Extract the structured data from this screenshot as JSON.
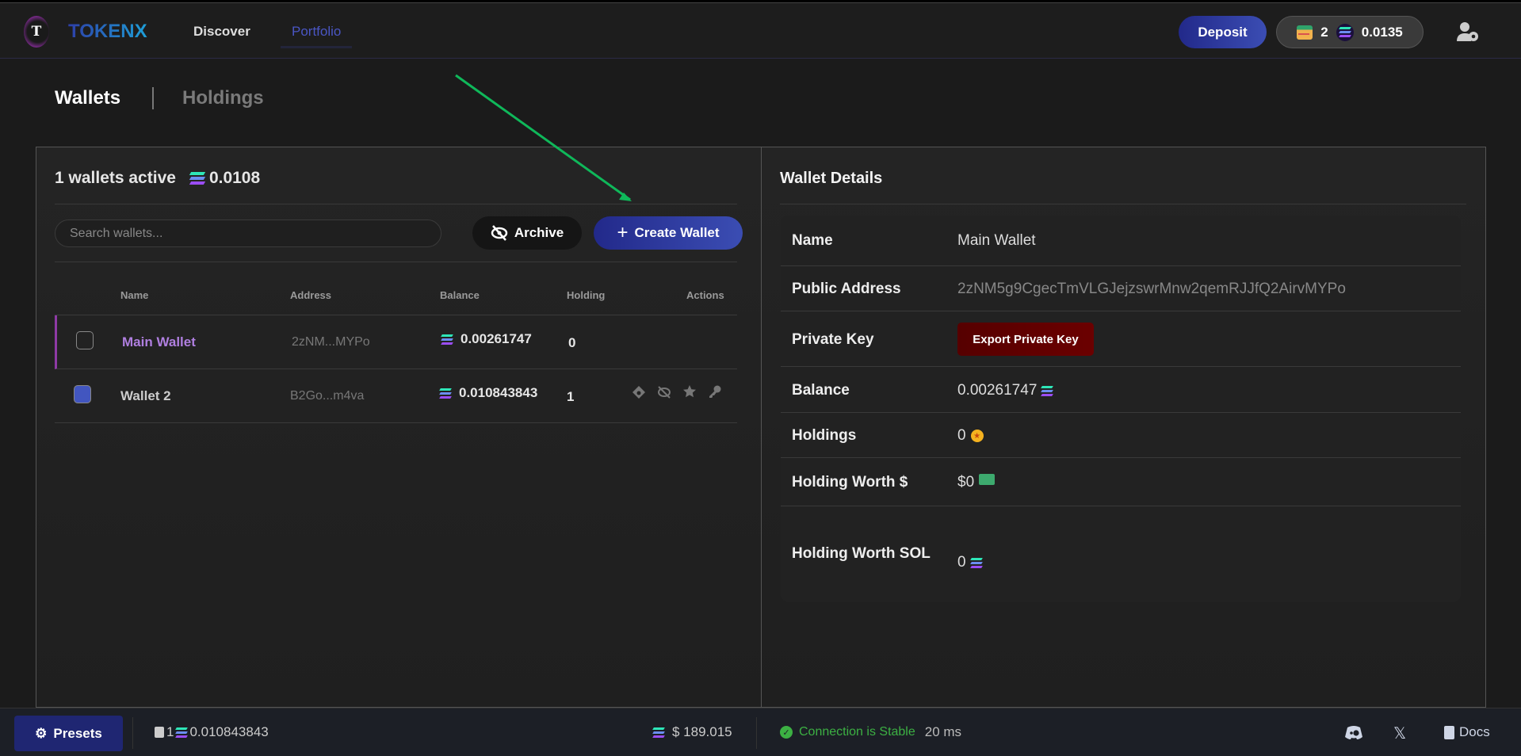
{
  "header": {
    "logo_letter": "T",
    "brand": "TOKENX",
    "nav": [
      {
        "label": "Discover"
      },
      {
        "label": "Portfolio",
        "active": true
      }
    ],
    "deposit_label": "Deposit",
    "wallet_count": "2",
    "sol_balance": "0.0135"
  },
  "tabs": [
    {
      "label": "Wallets",
      "active": true
    },
    {
      "label": "Holdings"
    }
  ],
  "wallets_panel": {
    "active_text": "1 wallets active",
    "total_sol": "0.0108",
    "search_placeholder": "Search wallets...",
    "archive_label": "Archive",
    "create_label": "Create Wallet",
    "columns": [
      "Name",
      "Address",
      "Balance",
      "Holding",
      "Actions"
    ],
    "rows": [
      {
        "name": "Main Wallet",
        "address": "2zNM...MYPo",
        "balance": "0.00261747",
        "holding": "0",
        "selected": true,
        "checked": false
      },
      {
        "name": "Wallet 2",
        "address": "B2Go...m4va",
        "balance": "0.010843843",
        "holding": "1",
        "selected": false,
        "checked": true
      }
    ]
  },
  "details": {
    "title": "Wallet Details",
    "rows": [
      {
        "label": "Name",
        "value": "Main Wallet"
      },
      {
        "label": "Public Address",
        "value": "2zNM5g9CgecTmVLGJejzswrMnw2qemRJJfQ2AirvMYPo"
      },
      {
        "label": "Private Key",
        "button": "Export Private Key"
      },
      {
        "label": "Balance",
        "value": "0.00261747"
      },
      {
        "label": "Holdings",
        "value": "0"
      },
      {
        "label": "Holding Worth $",
        "value": "$0"
      },
      {
        "label": "Holding Worth SOL",
        "value": "0"
      }
    ]
  },
  "footer": {
    "presets_label": "Presets",
    "wallet_count": "1",
    "wallet_balance": "0.010843843",
    "sol_price": "$ 189.015",
    "connection": "Connection is Stable",
    "latency": "20 ms",
    "docs_label": "Docs"
  },
  "colors": {
    "accent": "#3b4db3",
    "selected_name": "#b07fe0",
    "danger": "#6b0000",
    "success": "#3cb043",
    "annotation_arrow": "#0fb85a"
  }
}
